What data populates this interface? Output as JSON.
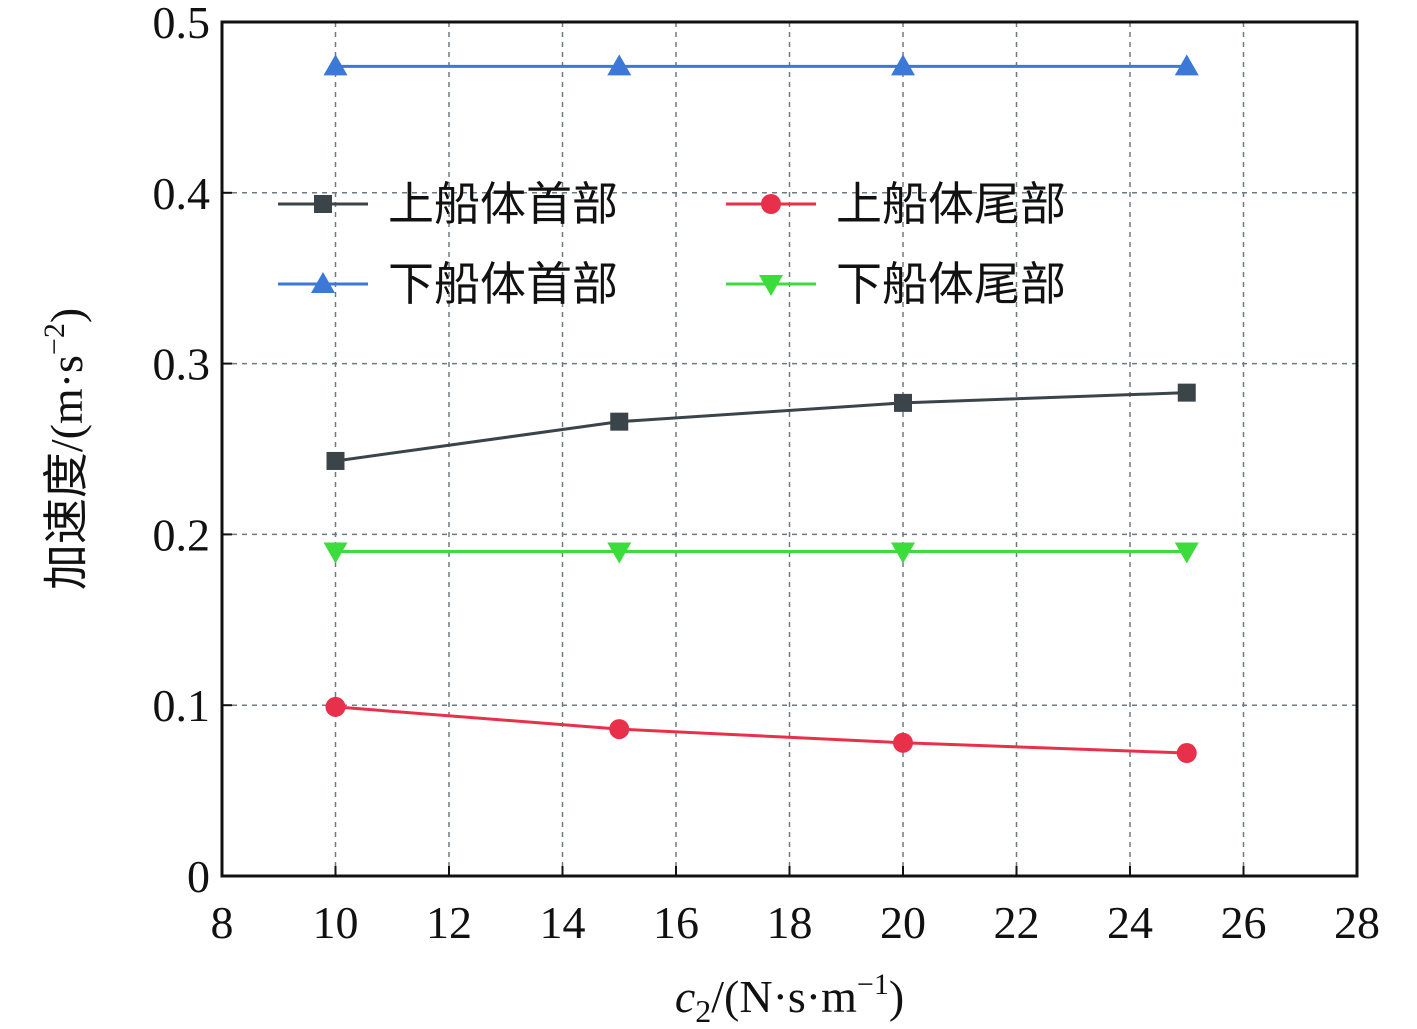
{
  "chart_data": {
    "type": "line",
    "title": "",
    "xlabel_var": "c",
    "xlabel_sub": "2",
    "xlabel_unit": "/(N·s·m",
    "xlabel_exp": "−1",
    "xlabel_close": ")",
    "ylabel_text": "加速度/(m·s",
    "ylabel_exp": "−2",
    "ylabel_close": ")",
    "xlim": [
      8,
      28
    ],
    "ylim": [
      0,
      0.5
    ],
    "xticks": [
      8,
      10,
      12,
      14,
      16,
      18,
      20,
      22,
      24,
      26,
      28
    ],
    "yticks": [
      0,
      0.1,
      0.2,
      0.3,
      0.4,
      0.5
    ],
    "ytick_labels": [
      "0",
      "0.1",
      "0.2",
      "0.3",
      "0.4",
      "0.5"
    ],
    "grid": true,
    "legend_position": "upper-left",
    "x": [
      10,
      15,
      20,
      25
    ],
    "series": [
      {
        "name": "上船体首部",
        "values": [
          0.243,
          0.266,
          0.277,
          0.283
        ],
        "color": "#3b4449",
        "marker": "square"
      },
      {
        "name": "上船体尾部",
        "values": [
          0.099,
          0.086,
          0.078,
          0.072
        ],
        "color": "#e8304a",
        "marker": "circle"
      },
      {
        "name": "下船体首部",
        "values": [
          0.474,
          0.474,
          0.474,
          0.474
        ],
        "color": "#3c78d8",
        "marker": "triangle-up"
      },
      {
        "name": "下船体尾部",
        "values": [
          0.19,
          0.19,
          0.19,
          0.19
        ],
        "color": "#3ddc3d",
        "marker": "triangle-down"
      }
    ]
  }
}
